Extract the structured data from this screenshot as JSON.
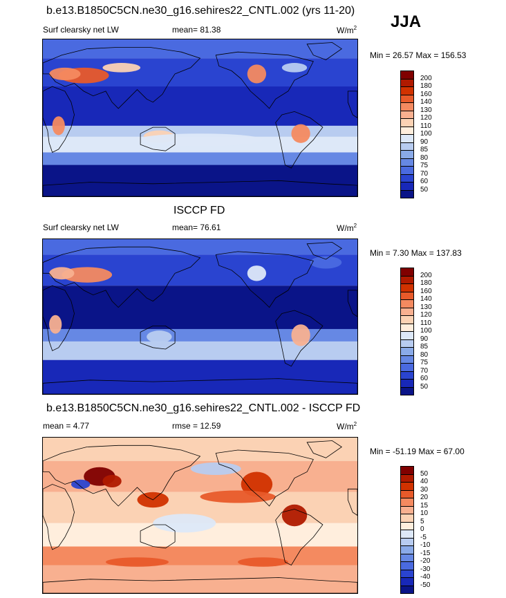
{
  "season": "JJA",
  "panels": [
    {
      "title": "b.e13.B1850C5CN.ne30_g16.sehires22_CNTL.002 (yrs 11-20)",
      "left_label": "Surf clearsky net LW",
      "center_label": "mean=  81.38",
      "unit": "W/m",
      "unit_exp": "2",
      "minmax": "Min =  26.57 Max = 156.53",
      "colorbar": {
        "labels": [
          "200",
          "180",
          "160",
          "140",
          "130",
          "120",
          "110",
          "100",
          "90",
          "85",
          "80",
          "75",
          "70",
          "60",
          "50"
        ],
        "colors": [
          "#800000",
          "#b01a00",
          "#d13200",
          "#e85a2a",
          "#f48a60",
          "#f8b090",
          "#fbd2b4",
          "#ffeedd",
          "#dde8f8",
          "#b8ccf0",
          "#8aaae8",
          "#6688e4",
          "#4a6ae0",
          "#2a44d0",
          "#1828b8",
          "#0a1488"
        ]
      },
      "map_style": "model"
    },
    {
      "title": "ISCCP FD",
      "left_label": "Surf clearsky net LW",
      "center_label": "mean=  76.61",
      "unit": "W/m",
      "unit_exp": "2",
      "minmax": "Min =   7.30 Max = 137.83",
      "colorbar": {
        "labels": [
          "200",
          "180",
          "160",
          "140",
          "130",
          "120",
          "110",
          "100",
          "90",
          "85",
          "80",
          "75",
          "70",
          "60",
          "50"
        ],
        "colors": [
          "#800000",
          "#b01a00",
          "#d13200",
          "#e85a2a",
          "#f48a60",
          "#f8b090",
          "#fbd2b4",
          "#ffeedd",
          "#dde8f8",
          "#b8ccf0",
          "#8aaae8",
          "#6688e4",
          "#4a6ae0",
          "#2a44d0",
          "#1828b8",
          "#0a1488"
        ]
      },
      "map_style": "obs"
    },
    {
      "title": "b.e13.B1850C5CN.ne30_g16.sehires22_CNTL.002 - ISCCP FD",
      "left_label": "mean =   4.77",
      "center_label": "rmse =  12.59",
      "unit": "W/m",
      "unit_exp": "2",
      "minmax": "Min = -51.19 Max =  67.00",
      "colorbar": {
        "labels": [
          "50",
          "40",
          "30",
          "20",
          "15",
          "10",
          "5",
          "0",
          "-5",
          "-10",
          "-15",
          "-20",
          "-30",
          "-40",
          "-50"
        ],
        "colors": [
          "#800000",
          "#b01a00",
          "#d13200",
          "#e85a2a",
          "#f48a60",
          "#f8b090",
          "#fbd2b4",
          "#ffeedd",
          "#dde8f8",
          "#b8ccf0",
          "#8aaae8",
          "#6688e4",
          "#4a6ae0",
          "#2a44d0",
          "#1828b8",
          "#0a1488"
        ]
      },
      "map_style": "diff"
    }
  ]
}
